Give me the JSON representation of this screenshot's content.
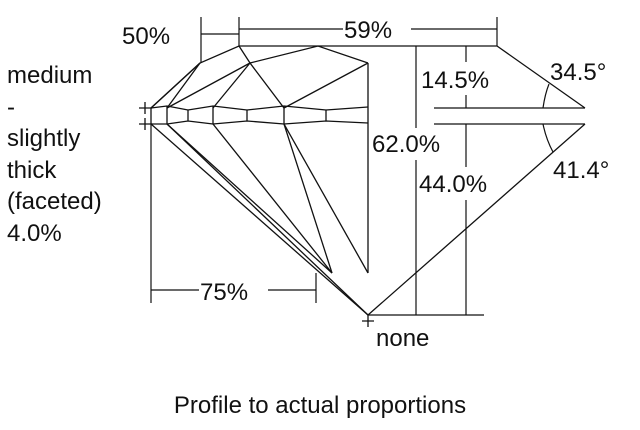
{
  "diagram": {
    "girdle": {
      "lines": [
        "medium",
        "-",
        "slightly",
        "thick",
        "(faceted)",
        "4.0%"
      ]
    },
    "star_length": "50%",
    "table": "59%",
    "crown_height": "14.5%",
    "crown_angle": "34.5°",
    "total_depth": "62.0%",
    "pavilion_depth": "44.0%",
    "pavilion_angle": "41.4°",
    "lower_half_length": "75%",
    "culet": "none",
    "caption": "Profile to actual proportions"
  }
}
